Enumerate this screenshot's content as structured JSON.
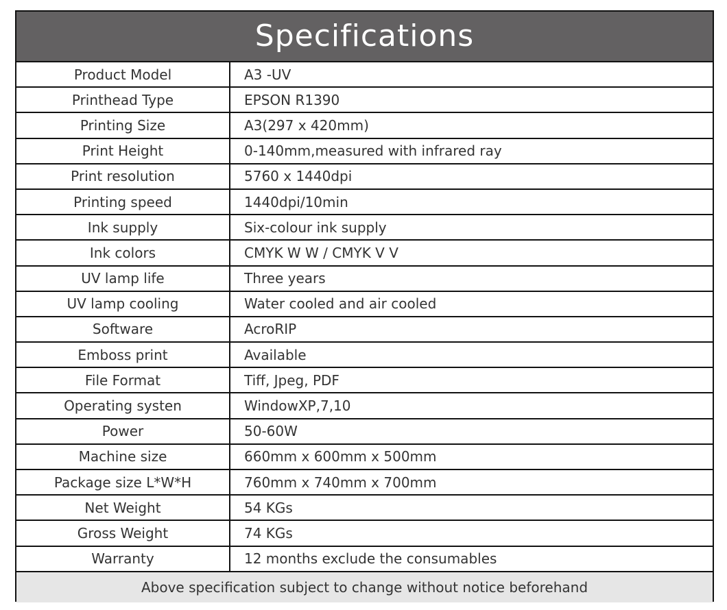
{
  "title": "Specifications",
  "rows": [
    {
      "label": "Product Model",
      "value": "A3 -UV"
    },
    {
      "label": "Printhead Type",
      "value": "EPSON R1390"
    },
    {
      "label": "Printing Size",
      "value": "A3(297 x 420mm)"
    },
    {
      "label": "Print Height",
      "value": "0-140mm,measured with infrared ray"
    },
    {
      "label": "Print resolution",
      "value": "5760 x 1440dpi"
    },
    {
      "label": "Printing speed",
      "value": "1440dpi/10min"
    },
    {
      "label": "Ink supply",
      "value": "Six-colour ink supply"
    },
    {
      "label": "Ink colors",
      "value": "CMYK W W / CMYK V V"
    },
    {
      "label": "UV lamp life",
      "value": "Three years"
    },
    {
      "label": "UV lamp cooling",
      "value": "Water cooled and air cooled"
    },
    {
      "label": "Software",
      "value": "AcroRIP"
    },
    {
      "label": "Emboss print",
      "value": "Available"
    },
    {
      "label": "File Format",
      "value": "Tiff, Jpeg, PDF"
    },
    {
      "label": "Operating systen",
      "value": "WindowXP,7,10"
    },
    {
      "label": "Power",
      "value": "50-60W"
    },
    {
      "label": "Machine size",
      "value": "660mm x 600mm x 500mm"
    },
    {
      "label": "Package size L*W*H",
      "value": "760mm x 740mm x 700mm"
    },
    {
      "label": "Net Weight",
      "value": "54 KGs"
    },
    {
      "label": "Gross Weight",
      "value": "74 KGs"
    },
    {
      "label": "Warranty",
      "value": "12 months exclude the consumables"
    }
  ],
  "footer": "Above specification subject to change without notice beforehand",
  "colors": {
    "header_bg": "#636162",
    "footer_bg": "#e6e6e6",
    "border": "#111111"
  }
}
